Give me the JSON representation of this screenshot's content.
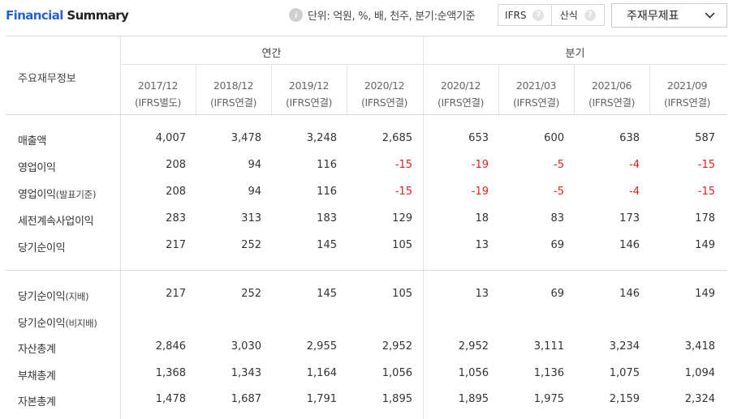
{
  "header": {
    "title_part1": "Financial",
    "title_part2": "Summary",
    "unit_text": "단위: 억원, %, 배, 천주, 분기:순액기준",
    "toggle": [
      {
        "label": "IFRS",
        "help": "?"
      },
      {
        "label": "산식",
        "help": "?"
      }
    ],
    "select_value": "주재무제표",
    "info_glyph": "i"
  },
  "table": {
    "corner_label": "주요재무정보",
    "group_annual": "연간",
    "group_quarter": "분기",
    "columns": [
      {
        "period": "2017/12",
        "basis": "(IFRS별도)"
      },
      {
        "period": "2018/12",
        "basis": "(IFRS연결)"
      },
      {
        "period": "2019/12",
        "basis": "(IFRS연결)"
      },
      {
        "period": "2020/12",
        "basis": "(IFRS연결)"
      },
      {
        "period": "2020/12",
        "basis": "(IFRS연결)"
      },
      {
        "period": "2021/03",
        "basis": "(IFRS연결)"
      },
      {
        "period": "2021/06",
        "basis": "(IFRS연결)"
      },
      {
        "period": "2021/09",
        "basis": "(IFRS연결)"
      }
    ],
    "rows": [
      {
        "label": "매출액",
        "suffix": "",
        "values": [
          "4,007",
          "3,478",
          "3,248",
          "2,685",
          "653",
          "600",
          "638",
          "587"
        ]
      },
      {
        "label": "영업이익",
        "suffix": "",
        "values": [
          "208",
          "94",
          "116",
          "-15",
          "-19",
          "-5",
          "-4",
          "-15"
        ]
      },
      {
        "label": "영업이익",
        "suffix": "(발표기준)",
        "values": [
          "208",
          "94",
          "116",
          "-15",
          "-19",
          "-5",
          "-4",
          "-15"
        ]
      },
      {
        "label": "세전계속사업이익",
        "suffix": "",
        "values": [
          "283",
          "313",
          "183",
          "129",
          "18",
          "83",
          "173",
          "178"
        ]
      },
      {
        "label": "당기순이익",
        "suffix": "",
        "values": [
          "217",
          "252",
          "145",
          "105",
          "13",
          "69",
          "146",
          "149"
        ]
      },
      {
        "label": "당기순이익",
        "suffix": "(지배)",
        "values": [
          "217",
          "252",
          "145",
          "105",
          "13",
          "69",
          "146",
          "149"
        ]
      },
      {
        "label": "당기순이익",
        "suffix": "(비지배)",
        "values": [
          "",
          "",
          "",
          "",
          "",
          "",
          "",
          ""
        ]
      },
      {
        "label": "자산총계",
        "suffix": "",
        "values": [
          "2,846",
          "3,030",
          "2,955",
          "2,952",
          "2,952",
          "3,111",
          "3,234",
          "3,418"
        ]
      },
      {
        "label": "부채총계",
        "suffix": "",
        "values": [
          "1,368",
          "1,343",
          "1,164",
          "1,056",
          "1,056",
          "1,136",
          "1,075",
          "1,094"
        ]
      },
      {
        "label": "자본총계",
        "suffix": "",
        "values": [
          "1,478",
          "1,687",
          "1,791",
          "1,895",
          "1,895",
          "1,975",
          "2,159",
          "2,324"
        ]
      }
    ],
    "negative_color": "#e0221e"
  }
}
